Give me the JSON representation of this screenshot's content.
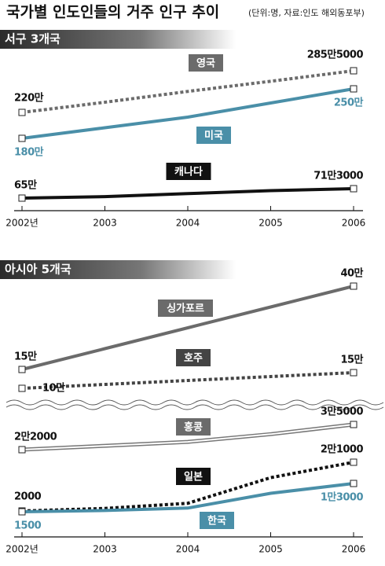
{
  "title": "국가별 인도인들의 거주 인구 추이",
  "subtitle": "(단위:명, 자료:인도 해외동포부)",
  "chart_data": [
    {
      "type": "line",
      "title": "서구 3개국",
      "categories": [
        "2002년",
        "2003",
        "2004",
        "2005",
        "2006"
      ],
      "series": [
        {
          "name": "영국",
          "color": "#6b6b6b",
          "line_style": "dotted",
          "values": [
            2200000,
            2360000,
            2530000,
            2690000,
            2855000
          ],
          "value_labels": [
            "220만",
            null,
            null,
            null,
            "285만5000"
          ]
        },
        {
          "name": "미국",
          "color": "#4a8fa8",
          "line_style": "solid",
          "values": [
            1800000,
            1950000,
            2100000,
            2300000,
            2500000
          ],
          "value_labels": [
            "180만",
            null,
            null,
            null,
            "250만"
          ]
        },
        {
          "name": "캐나다",
          "color": "#111111",
          "line_style": "solid",
          "values": [
            650000,
            660000,
            680000,
            700000,
            713000
          ],
          "value_labels": [
            "65만",
            null,
            null,
            null,
            "71만3000"
          ]
        }
      ]
    },
    {
      "type": "line",
      "title": "아시아 5개국",
      "categories": [
        "2002년",
        "2003",
        "2004",
        "2005",
        "2006"
      ],
      "series": [
        {
          "name": "싱가포르",
          "color": "#6b6b6b",
          "line_style": "solid",
          "values": [
            150000,
            212500,
            275000,
            337500,
            400000
          ],
          "value_labels": [
            "15만",
            null,
            null,
            null,
            "40만"
          ]
        },
        {
          "name": "호주",
          "color": "#444444",
          "line_style": "dotted",
          "values": [
            100000,
            112500,
            125000,
            137500,
            150000
          ],
          "value_labels": [
            "10만",
            null,
            null,
            null,
            "15만"
          ]
        },
        {
          "name": "홍콩",
          "color": "#777777",
          "line_style": "double",
          "values": [
            22000,
            24000,
            26000,
            30000,
            35000
          ],
          "value_labels": [
            "2만2000",
            null,
            null,
            null,
            "3만5000"
          ]
        },
        {
          "name": "일본",
          "color": "#111111",
          "line_style": "dotted",
          "values": [
            2000,
            3000,
            5000,
            15000,
            21000
          ],
          "value_labels": [
            "2000",
            null,
            null,
            null,
            "2만1000"
          ]
        },
        {
          "name": "한국",
          "color": "#4a8fa8",
          "line_style": "solid",
          "values": [
            1500,
            2000,
            3000,
            9000,
            13000
          ],
          "value_labels": [
            "1500",
            null,
            null,
            null,
            "1만3000"
          ]
        }
      ]
    }
  ]
}
